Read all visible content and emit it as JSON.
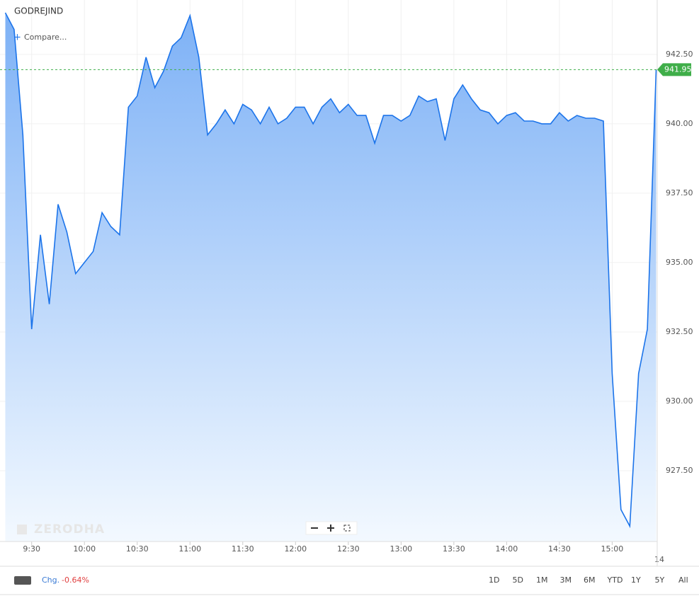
{
  "chart_data": {
    "type": "area",
    "symbol": "GODREJIND",
    "compare": "Compare...",
    "watermark": "ZERODHA",
    "date_label": "14",
    "x": [
      555,
      560,
      565,
      570,
      575,
      580,
      585,
      590,
      595,
      600,
      605,
      610,
      615,
      620,
      625,
      630,
      635,
      640,
      645,
      650,
      655,
      660,
      665,
      670,
      675,
      680,
      685,
      690,
      695,
      700,
      705,
      710,
      715,
      720,
      725,
      730,
      735,
      740,
      745,
      750,
      755,
      760,
      765,
      770,
      775,
      780,
      785,
      790,
      795,
      800,
      805,
      810,
      815,
      820,
      825,
      830,
      835,
      840,
      845,
      850,
      855,
      860,
      865,
      870,
      875,
      880,
      885,
      890,
      895,
      900,
      905,
      910,
      915,
      920,
      925
    ],
    "values": [
      944.0,
      943.4,
      939.6,
      932.6,
      936.0,
      933.5,
      937.1,
      936.1,
      934.6,
      935.0,
      935.4,
      936.8,
      936.3,
      936.0,
      940.6,
      941.0,
      942.4,
      941.3,
      941.9,
      942.8,
      943.1,
      943.9,
      942.4,
      939.6,
      940.0,
      940.5,
      940.0,
      940.7,
      940.5,
      940.0,
      940.6,
      940.0,
      940.2,
      940.6,
      940.6,
      940.0,
      940.6,
      940.9,
      940.4,
      940.7,
      940.3,
      940.3,
      939.3,
      940.3,
      940.3,
      940.1,
      940.3,
      941.0,
      940.8,
      940.9,
      939.4,
      940.9,
      941.4,
      940.9,
      940.5,
      940.4,
      940.0,
      940.3,
      940.4,
      940.1,
      940.1,
      940.0,
      940.0,
      940.4,
      940.1,
      940.3,
      940.2,
      940.2,
      940.1,
      931.0,
      926.1,
      925.5,
      931.0,
      932.6,
      941.95
    ],
    "color": "#1c74ea",
    "last_value": 941.95,
    "last_color": "#3fae49",
    "xlim": [
      552,
      925.6
    ],
    "ylim": [
      924.95,
      944.46
    ],
    "xticks": [
      {
        "value": 570,
        "label": "9:30"
      },
      {
        "value": 600,
        "label": "10:00"
      },
      {
        "value": 630,
        "label": "10:30"
      },
      {
        "value": 660,
        "label": "11:00"
      },
      {
        "value": 690,
        "label": "11:30"
      },
      {
        "value": 720,
        "label": "12:00"
      },
      {
        "value": 750,
        "label": "12:30"
      },
      {
        "value": 780,
        "label": "13:00"
      },
      {
        "value": 810,
        "label": "13:30"
      },
      {
        "value": 840,
        "label": "14:00"
      },
      {
        "value": 870,
        "label": "14:30"
      },
      {
        "value": 900,
        "label": "15:00"
      }
    ],
    "yticks": [
      {
        "value": 927.5,
        "label": "927.50"
      },
      {
        "value": 930,
        "label": "930.00"
      },
      {
        "value": 932.5,
        "label": "932.50"
      },
      {
        "value": 935,
        "label": "935.00"
      },
      {
        "value": 937.5,
        "label": "937.50"
      },
      {
        "value": 940,
        "label": "940.00"
      },
      {
        "value": 942.5,
        "label": "942.50"
      }
    ],
    "grid": true,
    "change_label": "Chg.",
    "change": "-0.64%",
    "periods": [
      "1D",
      "5D",
      "1M",
      "3M",
      "6M",
      "YTD",
      "1Y",
      "5Y",
      "All"
    ]
  }
}
